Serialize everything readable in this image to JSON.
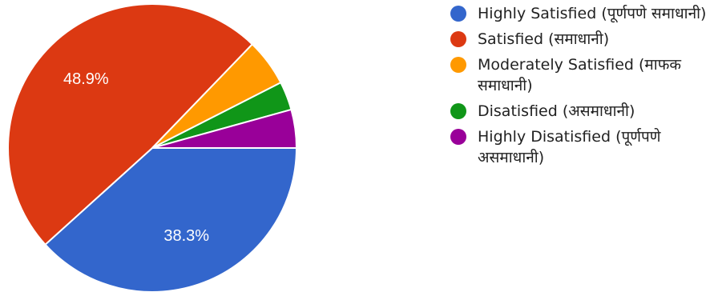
{
  "chart_data": {
    "type": "pie",
    "title": "",
    "slices": [
      {
        "name": "Highly Satisfied (पूर्णपणे समाधानी)",
        "value": 38.3,
        "label": "38.3%",
        "color": "#3366cc"
      },
      {
        "name": "Satisfied (समाधानी)",
        "value": 48.9,
        "label": "48.9%",
        "color": "#dc3912"
      },
      {
        "name": "Moderately Satisfied (माफक समाधानी)",
        "value": 5.3,
        "label": "",
        "color": "#ff9900"
      },
      {
        "name": "Disatisfied (असमाधानी)",
        "value": 3.2,
        "label": "",
        "color": "#109618"
      },
      {
        "name": "Highly Disatisfied (पूर्णपणे असमाधानी)",
        "value": 4.3,
        "label": "",
        "color": "#990099"
      }
    ],
    "legend_position": "right"
  }
}
